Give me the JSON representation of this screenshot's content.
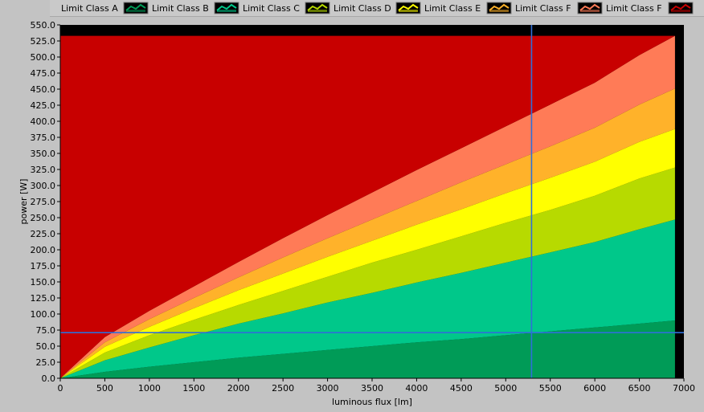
{
  "legend": [
    {
      "label": "Limit Class A",
      "color": "#009b57"
    },
    {
      "label": "Limit Class B",
      "color": "#00c88a"
    },
    {
      "label": "Limit Class C",
      "color": "#b7da00"
    },
    {
      "label": "Limit Class D",
      "color": "#ffff00"
    },
    {
      "label": "Limit Class E",
      "color": "#ffb22a"
    },
    {
      "label": "Limit Class F",
      "color": "#ff7b57"
    },
    {
      "label": "Limit Class F",
      "color": "#c80000"
    }
  ],
  "chart_data": {
    "type": "area",
    "title": "",
    "xlabel": "luminous flux [lm]",
    "ylabel": "power [W]",
    "xlim": [
      0,
      7000
    ],
    "ylim": [
      0,
      550
    ],
    "x_ticks": [
      "0",
      "500",
      "1000",
      "1500",
      "2000",
      "2500",
      "3000",
      "3500",
      "4000",
      "4500",
      "5000",
      "5500",
      "6000",
      "6500",
      "7000"
    ],
    "y_ticks": [
      "0.0",
      "25.0",
      "50.0",
      "75.0",
      "100.0",
      "125.0",
      "150.0",
      "175.0",
      "200.0",
      "225.0",
      "250.0",
      "275.0",
      "300.0",
      "325.0",
      "350.0",
      "375.0",
      "400.0",
      "425.0",
      "450.0",
      "475.0",
      "500.0",
      "525.0",
      "550.0"
    ],
    "x": [
      0,
      500,
      1000,
      1500,
      2000,
      2500,
      3000,
      3500,
      4000,
      4500,
      5000,
      5500,
      6000,
      6500,
      6900
    ],
    "series": [
      {
        "name": "Limit Class A",
        "color": "#009b57",
        "values": [
          0,
          10,
          18,
          25,
          32,
          38,
          44,
          50,
          56,
          61,
          67,
          73,
          79,
          85,
          90
        ]
      },
      {
        "name": "Limit Class B",
        "color": "#00c88a",
        "values": [
          0,
          28,
          48,
          67,
          85,
          101,
          118,
          133,
          149,
          164,
          180,
          196,
          212,
          232,
          247
        ]
      },
      {
        "name": "Limit Class C",
        "color": "#b7da00",
        "values": [
          0,
          40,
          67,
          91,
          114,
          136,
          158,
          180,
          200,
          221,
          242,
          262,
          284,
          311,
          328
        ]
      },
      {
        "name": "Limit Class D",
        "color": "#ffff00",
        "values": [
          0,
          49,
          80,
          109,
          137,
          163,
          189,
          214,
          239,
          263,
          288,
          312,
          337,
          368,
          388
        ]
      },
      {
        "name": "Limit Class E",
        "color": "#ffb22a",
        "values": [
          0,
          56,
          92,
          125,
          157,
          188,
          218,
          247,
          276,
          305,
          333,
          361,
          390,
          426,
          451
        ]
      },
      {
        "name": "Limit Class F",
        "color": "#ff7b57",
        "values": [
          0,
          64,
          105,
          143,
          181,
          218,
          254,
          289,
          324,
          358,
          392,
          426,
          460,
          503,
          533
        ]
      },
      {
        "name": "Limit Class F",
        "color": "#c80000",
        "values": [
          533,
          533,
          533,
          533,
          533,
          533,
          533,
          533,
          533,
          533,
          533,
          533,
          533,
          533,
          533
        ]
      }
    ],
    "cursor": {
      "x": 5290,
      "y": 71
    },
    "background": "#000000",
    "grid": false,
    "legend_position": "top"
  }
}
